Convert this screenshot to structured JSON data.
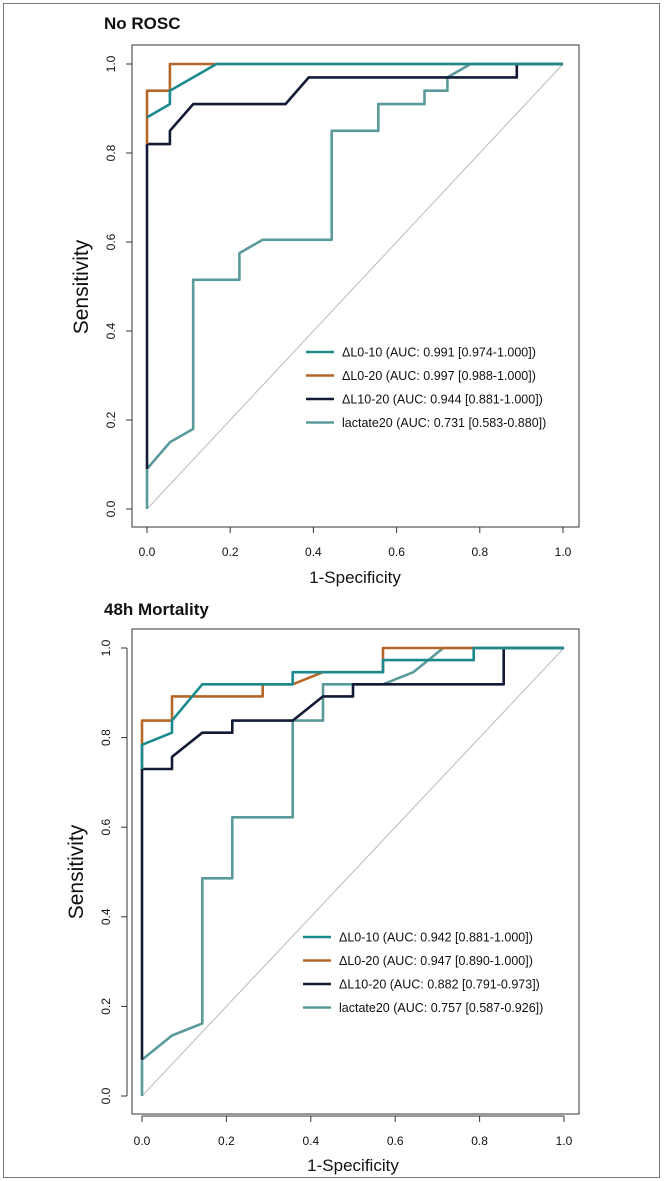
{
  "chart_data": [
    {
      "type": "line",
      "title": "No ROSC",
      "xlabel": "1-Specificity",
      "ylabel": "Sensitivity",
      "xlim": [
        0,
        1
      ],
      "ylim": [
        0,
        1
      ],
      "xticks": [
        "0.0",
        "0.2",
        "0.4",
        "0.6",
        "0.8",
        "1.0"
      ],
      "yticks": [
        "0.0",
        "0.2",
        "0.4",
        "0.6",
        "0.8",
        "1.0"
      ],
      "grid": false,
      "legend_position": "bottom-right",
      "reference_line": true,
      "series": [
        {
          "name": "ΔL0-10 (AUC: 0.991 [0.974-1.000])",
          "color": "#1a8a8f",
          "points": [
            [
              0,
              0.88
            ],
            [
              0,
              0.88
            ],
            [
              0.055,
              0.91
            ],
            [
              0.055,
              0.94
            ],
            [
              0.167,
              1.0
            ],
            [
              1.0,
              1.0
            ]
          ]
        },
        {
          "name": "ΔL0-20 (AUC: 0.997 [0.988-1.000])",
          "color": "#b5672a",
          "points": [
            [
              0,
              0.82
            ],
            [
              0,
              0.94
            ],
            [
              0.055,
              0.94
            ],
            [
              0.055,
              1.0
            ],
            [
              0.778,
              1.0
            ],
            [
              1.0,
              1.0
            ]
          ]
        },
        {
          "name": "ΔL10-20 (AUC: 0.944 [0.881-1.000])",
          "color": "#121a36",
          "points": [
            [
              0,
              0.09
            ],
            [
              0,
              0.82
            ],
            [
              0.055,
              0.82
            ],
            [
              0.055,
              0.85
            ],
            [
              0.111,
              0.91
            ],
            [
              0.333,
              0.91
            ],
            [
              0.389,
              0.97
            ],
            [
              0.889,
              0.97
            ],
            [
              0.889,
              1.0
            ],
            [
              1.0,
              1.0
            ]
          ]
        },
        {
          "name": "lactate20 (AUC: 0.731 [0.583-0.880])",
          "color": "#5a9a9a",
          "points": [
            [
              0,
              0
            ],
            [
              0,
              0.09
            ],
            [
              0.055,
              0.15
            ],
            [
              0.111,
              0.18
            ],
            [
              0.111,
              0.515
            ],
            [
              0.222,
              0.515
            ],
            [
              0.222,
              0.575
            ],
            [
              0.278,
              0.605
            ],
            [
              0.444,
              0.605
            ],
            [
              0.444,
              0.85
            ],
            [
              0.556,
              0.85
            ],
            [
              0.556,
              0.91
            ],
            [
              0.611,
              0.91
            ],
            [
              0.667,
              0.91
            ],
            [
              0.667,
              0.94
            ],
            [
              0.722,
              0.94
            ],
            [
              0.722,
              0.97
            ],
            [
              0.778,
              1.0
            ],
            [
              1.0,
              1.0
            ]
          ]
        }
      ]
    },
    {
      "type": "line",
      "title": "48h Mortality",
      "xlabel": "1-Specificity",
      "ylabel": "Sensitivity",
      "xlim": [
        0,
        1
      ],
      "ylim": [
        0,
        1
      ],
      "xticks": [
        "0.0",
        "0.2",
        "0.4",
        "0.6",
        "0.8",
        "1.0"
      ],
      "yticks": [
        "0.0",
        "0.2",
        "0.4",
        "0.6",
        "0.8",
        "1.0"
      ],
      "grid": false,
      "legend_position": "bottom-right",
      "reference_line": true,
      "series": [
        {
          "name": "ΔL0-10 (AUC: 0.942 [0.881-1.000])",
          "color": "#1a8a8f",
          "points": [
            [
              0,
              0.73
            ],
            [
              0,
              0.784
            ],
            [
              0.071,
              0.811
            ],
            [
              0.071,
              0.838
            ],
            [
              0.143,
              0.919
            ],
            [
              0.357,
              0.919
            ],
            [
              0.357,
              0.946
            ],
            [
              0.571,
              0.946
            ],
            [
              0.571,
              0.973
            ],
            [
              0.786,
              0.973
            ],
            [
              0.786,
              1.0
            ],
            [
              1.0,
              1.0
            ]
          ]
        },
        {
          "name": "ΔL0-20 (AUC: 0.947 [0.890-1.000])",
          "color": "#b5672a",
          "points": [
            [
              0,
              0.73
            ],
            [
              0,
              0.838
            ],
            [
              0.071,
              0.838
            ],
            [
              0.071,
              0.892
            ],
            [
              0.286,
              0.892
            ],
            [
              0.286,
              0.919
            ],
            [
              0.357,
              0.919
            ],
            [
              0.429,
              0.946
            ],
            [
              0.571,
              0.946
            ],
            [
              0.571,
              1.0
            ],
            [
              1.0,
              1.0
            ]
          ]
        },
        {
          "name": "ΔL10-20 (AUC: 0.882 [0.791-0.973])",
          "color": "#121a36",
          "points": [
            [
              0,
              0.081
            ],
            [
              0,
              0.73
            ],
            [
              0.071,
              0.73
            ],
            [
              0.071,
              0.757
            ],
            [
              0.143,
              0.811
            ],
            [
              0.214,
              0.811
            ],
            [
              0.214,
              0.838
            ],
            [
              0.357,
              0.838
            ],
            [
              0.429,
              0.892
            ],
            [
              0.5,
              0.892
            ],
            [
              0.5,
              0.919
            ],
            [
              0.857,
              0.919
            ],
            [
              0.857,
              1.0
            ],
            [
              1.0,
              1.0
            ]
          ]
        },
        {
          "name": "lactate20 (AUC: 0.757 [0.587-0.926])",
          "color": "#5a9a9a",
          "points": [
            [
              0,
              0
            ],
            [
              0,
              0.081
            ],
            [
              0.071,
              0.135
            ],
            [
              0.143,
              0.162
            ],
            [
              0.143,
              0.486
            ],
            [
              0.214,
              0.486
            ],
            [
              0.214,
              0.622
            ],
            [
              0.357,
              0.622
            ],
            [
              0.357,
              0.838
            ],
            [
              0.429,
              0.838
            ],
            [
              0.429,
              0.919
            ],
            [
              0.571,
              0.919
            ],
            [
              0.643,
              0.946
            ],
            [
              0.714,
              1.0
            ],
            [
              1.0,
              1.0
            ]
          ]
        }
      ]
    }
  ]
}
